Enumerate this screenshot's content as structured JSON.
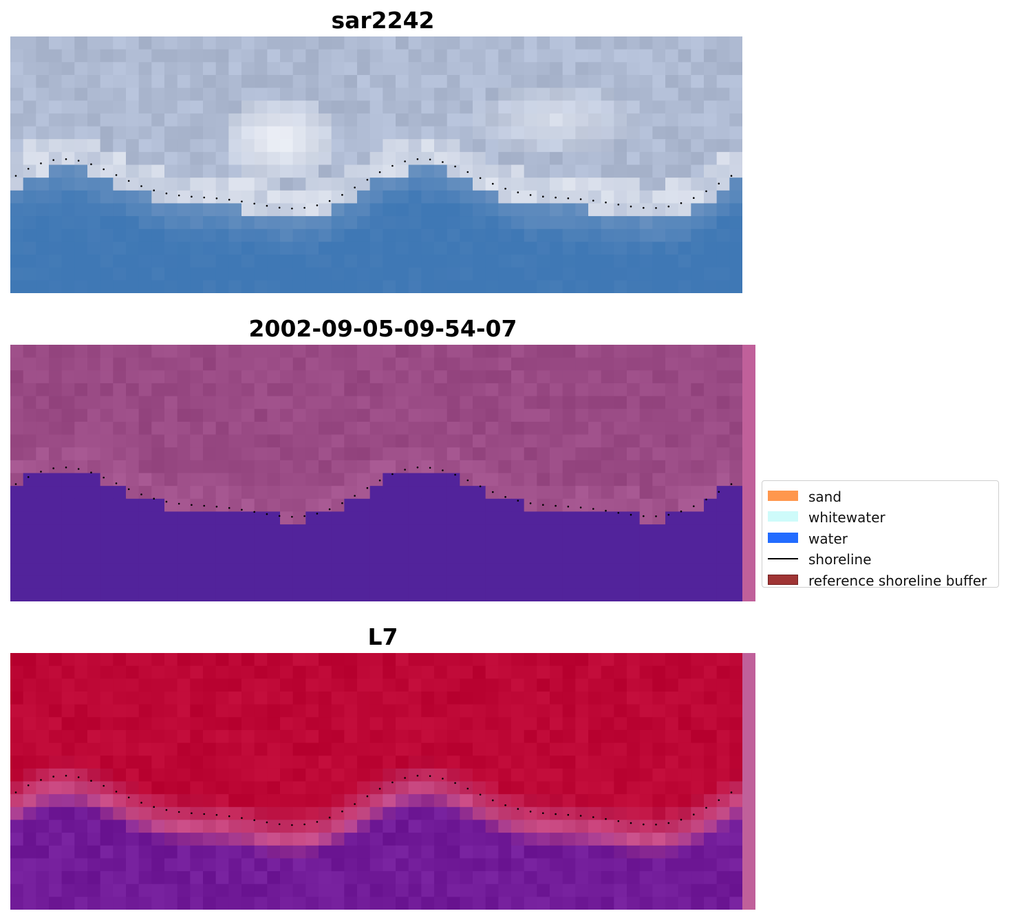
{
  "figure": {
    "panels": [
      {
        "title": "sar2242",
        "kind": "rgb"
      },
      {
        "title": "2002-09-05-09-54-07",
        "kind": "classified"
      },
      {
        "title": "L7",
        "kind": "probability"
      }
    ]
  },
  "legend": {
    "items": [
      {
        "label": "sand",
        "type": "patch",
        "color": "#ff8c3a"
      },
      {
        "label": "whitewater",
        "type": "patch",
        "color": "#c9fbfa"
      },
      {
        "label": "water",
        "type": "patch",
        "color": "#0a5cff"
      },
      {
        "label": "shoreline",
        "type": "line",
        "color": "#000000"
      },
      {
        "label": "reference shoreline buffer",
        "type": "patch",
        "color": "#9a2a2a"
      }
    ]
  },
  "colors": {
    "sar_sky": "#aebad2",
    "sar_bright": "#f4f6fb",
    "sar_water": "#3f78b5",
    "class_land": "#994a84",
    "class_water": "#52239b",
    "class_strip": "#c0609a",
    "prob_land": "#bd0735",
    "prob_mid": "#c74d88",
    "prob_water": "#711b98",
    "shoreline_dots": "#000000"
  }
}
